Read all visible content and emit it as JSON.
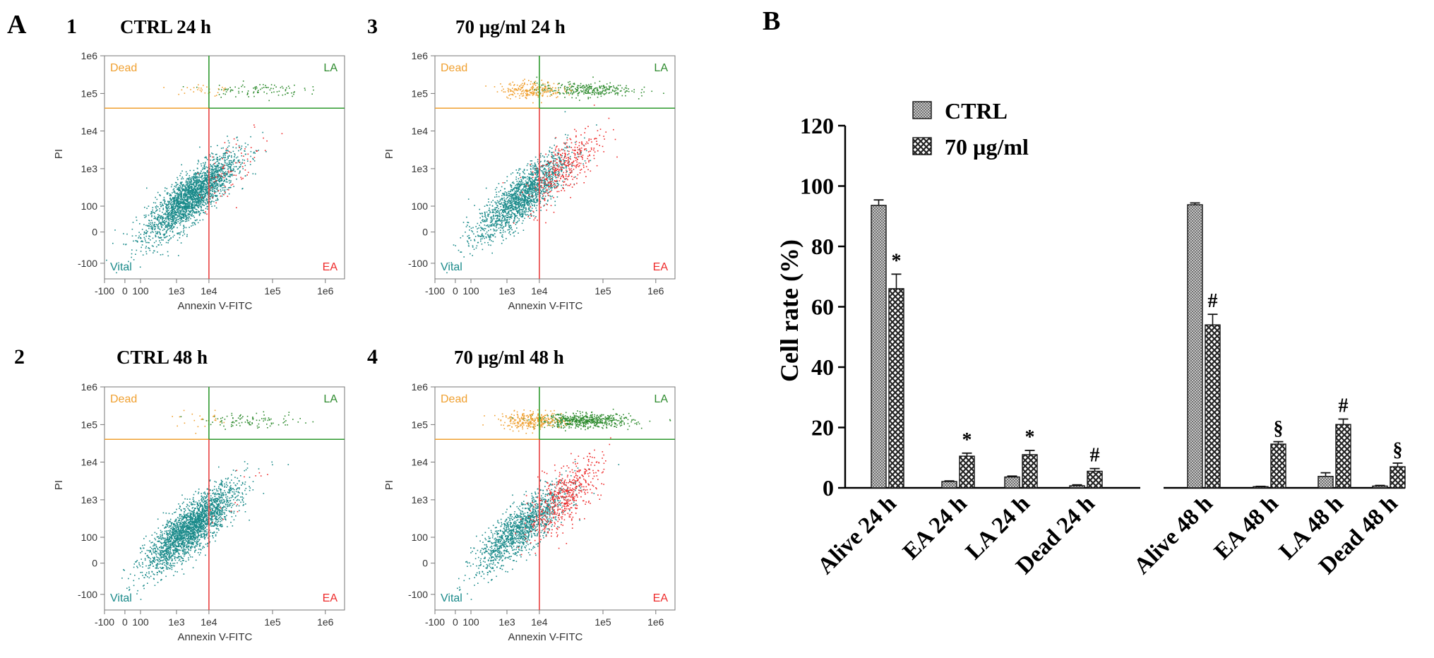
{
  "figure": {
    "panel_a_label": "A",
    "panel_b_label": "B"
  },
  "colors": {
    "vital": "#1a8a8a",
    "early_apoptotic": "#ee2b2b",
    "late_apoptotic": "#2e8b2e",
    "dead": "#f0a030",
    "gate_horizontal": "#f0a030",
    "gate_vertical_lower": "#e84040",
    "gate_vertical_upper": "#2e9a2e",
    "bar_ctrl": "#9a9a9a",
    "bar_treated": "#3a3a3a"
  },
  "chart_data": [
    {
      "type": "scatter",
      "panel_number": "1",
      "title": "CTRL 24 h",
      "xlabel": "Annexin V-FITC",
      "ylabel": "PI",
      "x_ticks": [
        "-100",
        "0",
        "100",
        "1e3",
        "1e4",
        "1e5",
        "1e6"
      ],
      "y_ticks": [
        "1e6",
        "1e5",
        "1e4",
        "1e3",
        "100",
        "0",
        "-100"
      ],
      "quadrants": {
        "upper_left": "Dead",
        "upper_right": "LA",
        "lower_left": "Vital",
        "lower_right": "EA"
      },
      "population_fractions": {
        "vital": 93.6,
        "early_apoptotic": 2.1,
        "late_apoptotic": 3.6,
        "dead": 0.7
      }
    },
    {
      "type": "scatter",
      "panel_number": "2",
      "title": "CTRL 48 h",
      "xlabel": "Annexin V-FITC",
      "ylabel": "PI",
      "x_ticks": [
        "-100",
        "0",
        "100",
        "1e3",
        "1e4",
        "1e5",
        "1e6"
      ],
      "y_ticks": [
        "1e6",
        "1e5",
        "1e4",
        "1e3",
        "100",
        "0",
        "-100"
      ],
      "quadrants": {
        "upper_left": "Dead",
        "upper_right": "LA",
        "lower_left": "Vital",
        "lower_right": "EA"
      },
      "population_fractions": {
        "vital": 93.8,
        "early_apoptotic": 0.4,
        "late_apoptotic": 3.8,
        "dead": 0.6
      }
    },
    {
      "type": "scatter",
      "panel_number": "3",
      "title": "70 µg/ml 24  h",
      "xlabel": "Annexin V-FITC",
      "ylabel": "PI",
      "x_ticks": [
        "-100",
        "0",
        "100",
        "1e3",
        "1e4",
        "1e5",
        "1e6"
      ],
      "y_ticks": [
        "1e6",
        "1e5",
        "1e4",
        "1e3",
        "100",
        "0",
        "-100"
      ],
      "quadrants": {
        "upper_left": "Dead",
        "upper_right": "LA",
        "lower_left": "Vital",
        "lower_right": "EA"
      },
      "population_fractions": {
        "vital": 66.0,
        "early_apoptotic": 10.5,
        "late_apoptotic": 11.0,
        "dead": 5.5
      }
    },
    {
      "type": "scatter",
      "panel_number": "4",
      "title": "70 µg/ml 48 h",
      "xlabel": "Annexin V-FITC",
      "ylabel": "PI",
      "x_ticks": [
        "-100",
        "0",
        "100",
        "1e3",
        "1e4",
        "1e5",
        "1e6"
      ],
      "y_ticks": [
        "1e6",
        "1e5",
        "1e4",
        "1e3",
        "100",
        "0",
        "-100"
      ],
      "quadrants": {
        "upper_left": "Dead",
        "upper_right": "LA",
        "lower_left": "Vital",
        "lower_right": "EA"
      },
      "population_fractions": {
        "vital": 54.0,
        "early_apoptotic": 14.5,
        "late_apoptotic": 21.0,
        "dead": 7.0
      }
    },
    {
      "type": "bar",
      "title": "",
      "xlabel": "",
      "ylabel": "Cell rate (%)",
      "ylim": [
        0,
        120
      ],
      "y_ticks": [
        0,
        20,
        40,
        60,
        80,
        100,
        120
      ],
      "categories": [
        "Alive 24 h",
        "EA 24 h",
        "LA 24 h",
        "Dead 24 h",
        "Alive 48 h",
        "EA 48 h",
        "LA 48 h",
        "Dead 48 h"
      ],
      "series": [
        {
          "name": "CTRL",
          "values": [
            93.6,
            2.1,
            3.6,
            0.7,
            93.8,
            0.4,
            3.8,
            0.6
          ],
          "errors": [
            1.8,
            0.2,
            0.3,
            0.3,
            0.6,
            0.1,
            1.2,
            0.2
          ]
        },
        {
          "name": "70 µg/ml",
          "values": [
            66.0,
            10.5,
            11.0,
            5.5,
            54.0,
            14.5,
            21.0,
            7.0
          ],
          "errors": [
            4.8,
            1.0,
            1.4,
            0.9,
            3.5,
            0.8,
            1.8,
            1.2
          ]
        }
      ],
      "significance_marks": [
        "*",
        "*",
        "*",
        "#",
        "#",
        "§",
        "#",
        "§"
      ],
      "legend_position": "top-left"
    }
  ]
}
